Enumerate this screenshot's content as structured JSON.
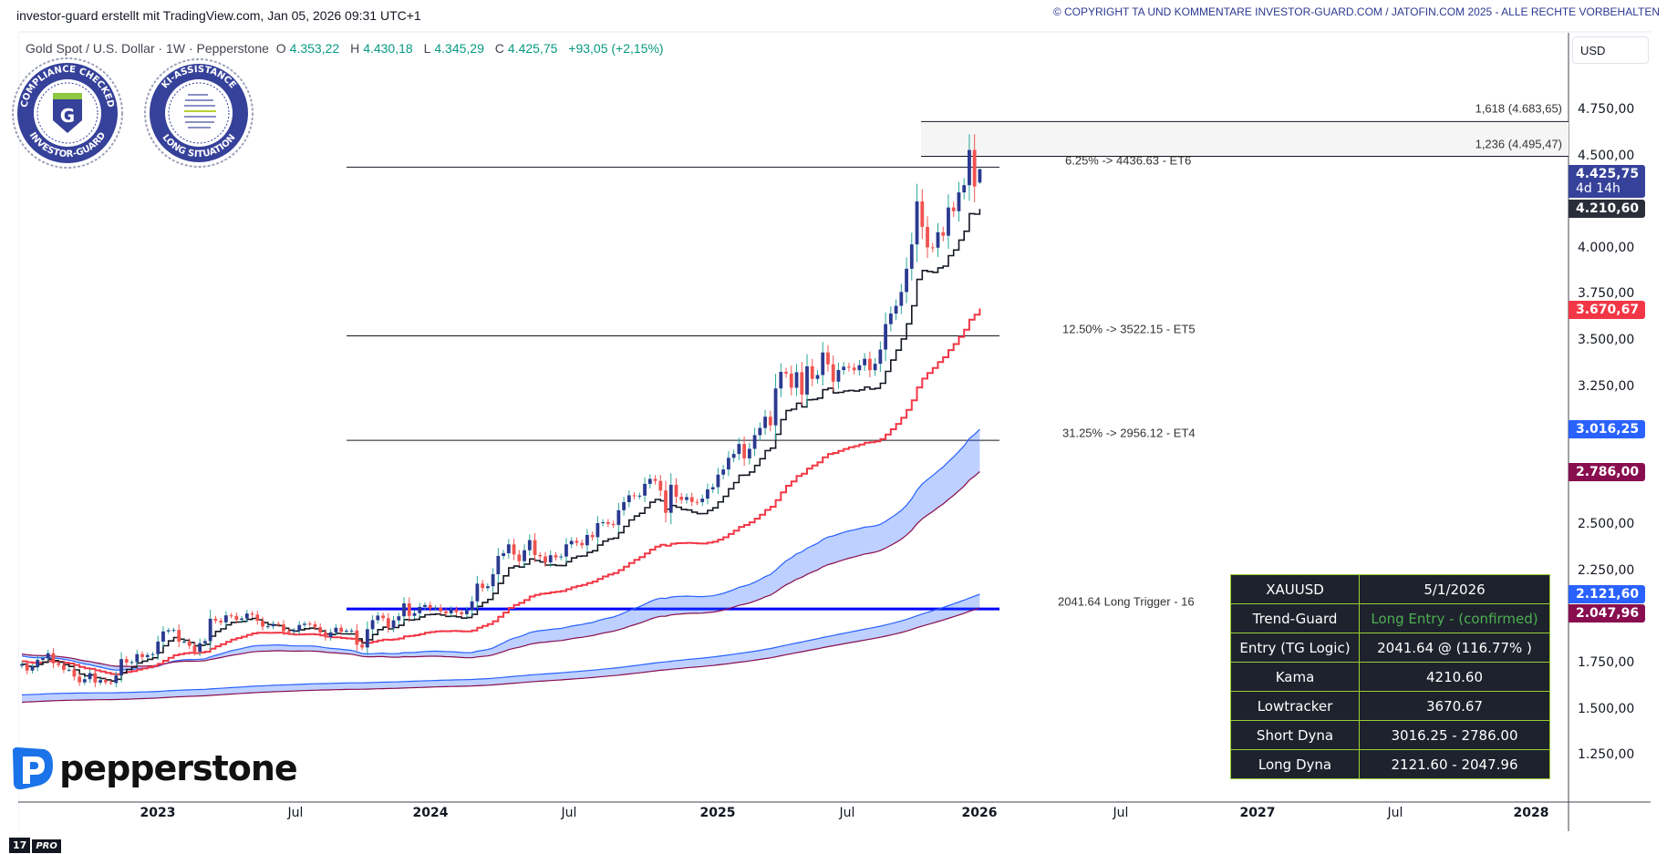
{
  "header": {
    "created_by": "investor-guard erstellt mit TradingView.com, Jan 05, 2026 09:31 UTC+1",
    "copyright": "© COPYRIGHT TA UND KOMMENTARE INVESTOR-GUARD.COM / JATOFIN.COM 2025 - ALLE RECHTE VORBEHALTEN"
  },
  "symbol": {
    "title": "Gold Spot / U.S. Dollar · 1W · Pepperstone",
    "o_label": "O",
    "o": "4.353,22",
    "h_label": "H",
    "h": "4.430,18",
    "l_label": "L",
    "l": "4.345,29",
    "c_label": "C",
    "c": "4.425,75",
    "change": "+93,05 (+2,15%)",
    "value_color": "#089981"
  },
  "logos": {
    "compliance": "COMPLIANCE CHECKED · INVESTOR-GUARD",
    "ki": "KI-ASSISTANCE · LONG SITUATION",
    "broker": "pepperstone",
    "tv": "PRO"
  },
  "price_axis": {
    "currency": "USD",
    "ticks": [
      "4.750,00",
      "4.500,00",
      "4.000,00",
      "3.750,00",
      "3.500,00",
      "3.250,00",
      "2.500,00",
      "2.250,00",
      "1.750,00",
      "1.500,00",
      "1.250,00"
    ],
    "badges": [
      {
        "label": "4.425,75",
        "sub": "4d 14h",
        "color": "#36419a"
      },
      {
        "label": "4.210,60",
        "color": "#2a2e39"
      },
      {
        "label": "3.670,67",
        "color": "#f23645"
      },
      {
        "label": "3.016,25",
        "color": "#2962ff"
      },
      {
        "label": "2.786,00",
        "color": "#880e4f"
      },
      {
        "label": "2.121,60",
        "color": "#2962ff"
      },
      {
        "label": "2.047,96",
        "color": "#880e4f"
      }
    ]
  },
  "time_axis": {
    "ticks": [
      "2023",
      "Jul",
      "2024",
      "Jul",
      "2025",
      "Jul",
      "2026",
      "Jul",
      "2027",
      "Jul",
      "2028"
    ]
  },
  "levels": {
    "fib_1618": "1,618 (4.683,65)",
    "fib_1236": "1,236 (4.495,47)",
    "et6": "6.25% -> 4436.63 - ET6",
    "et5": "12.50% -> 3522.15 - ET5",
    "et4": "31.25% -> 2956.12 - ET4",
    "long_trigger": "2041.64  Long Trigger - 16"
  },
  "table": {
    "rows": [
      {
        "k": "XAUUSD",
        "v": "5/1/2026"
      },
      {
        "k": "Trend-Guard",
        "v": "Long Entry - (confirmed)",
        "accent": "#4caf50"
      },
      {
        "k": "Entry (TG Logic)",
        "v": "2041.64 @ (116.77% )"
      },
      {
        "k": "Kama",
        "v": "4210.60"
      },
      {
        "k": "Lowtracker",
        "v": "3670.67"
      },
      {
        "k": "Short Dyna",
        "v": "3016.25 - 2786.00"
      },
      {
        "k": "Long Dyna",
        "v": "2121.60 - 2047.96"
      }
    ]
  },
  "chart_data": {
    "type": "candlestick",
    "interval": "1W",
    "x_start": "2022-07-04",
    "ylim": [
      1100,
      4900
    ],
    "up_color": "#2b3990",
    "down_color": "#f05350",
    "last_ohlc": [
      4353.22,
      4430.18,
      4345.29,
      4425.75
    ],
    "closes": [
      1742,
      1708,
      1727,
      1766,
      1775,
      1802,
      1747,
      1738,
      1712,
      1712,
      1675,
      1644,
      1661,
      1694,
      1643,
      1656,
      1644,
      1640,
      1681,
      1770,
      1751,
      1754,
      1797,
      1781,
      1792,
      1797,
      1865,
      1920,
      1926,
      1928,
      1865,
      1865,
      1842,
      1810,
      1856,
      1868,
      1989,
      1978,
      1969,
      2007,
      2004,
      1983,
      1990,
      2017,
      2011,
      1978,
      1946,
      1948,
      1961,
      1958,
      1921,
      1919,
      1925,
      1955,
      1962,
      1959,
      1943,
      1914,
      1889,
      1915,
      1940,
      1919,
      1924,
      1925,
      1848,
      1833,
      1932,
      1981,
      2006,
      1992,
      1940,
      1980,
      2002,
      2072,
      2004,
      2019,
      2053,
      2063,
      2045,
      2049,
      2029,
      2018,
      2039,
      2024,
      2013,
      2035,
      2083,
      2179,
      2155,
      2165,
      2230,
      2329,
      2344,
      2392,
      2337,
      2301,
      2360,
      2415,
      2334,
      2327,
      2294,
      2333,
      2321,
      2326,
      2392,
      2411,
      2400,
      2387,
      2443,
      2431,
      2507,
      2512,
      2503,
      2497,
      2577,
      2621,
      2658,
      2653,
      2656,
      2720,
      2747,
      2736,
      2684,
      2563,
      2715,
      2650,
      2633,
      2648,
      2622,
      2621,
      2640,
      2690,
      2702,
      2770,
      2798,
      2861,
      2882,
      2936,
      2858,
      2910,
      2984,
      3023,
      3084,
      3037,
      3237,
      3327,
      3318,
      3241,
      3325,
      3204,
      3357,
      3289,
      3310,
      3432,
      3368,
      3274,
      3337,
      3355,
      3350,
      3336,
      3363,
      3398,
      3336,
      3371,
      3448,
      3586,
      3643,
      3685,
      3760,
      3886,
      4018,
      4251,
      4113,
      4002,
      4000,
      4084,
      4065,
      4218,
      4198,
      4300,
      4339,
      4530,
      4332,
      4425.75
    ],
    "indicators": {
      "kama": {
        "last": 4210.6,
        "color": "#131722"
      },
      "lowtracker": {
        "last": 3670.67,
        "color": "#f23645"
      },
      "short_dyna": {
        "upper": 3016.25,
        "lower": 2786.0,
        "upper_color": "#2962ff",
        "lower_color": "#880e4f"
      },
      "long_dyna": {
        "upper": 2121.6,
        "lower": 2047.96,
        "upper_color": "#2962ff",
        "lower_color": "#880e4f"
      }
    },
    "hlines": {
      "fib_1618": 4683.65,
      "fib_1236": 4495.47,
      "et6": 4436.63,
      "et5": 3522.15,
      "et4": 2956.12,
      "long_trigger": 2041.64,
      "trigger_color": "#0000ff"
    }
  }
}
